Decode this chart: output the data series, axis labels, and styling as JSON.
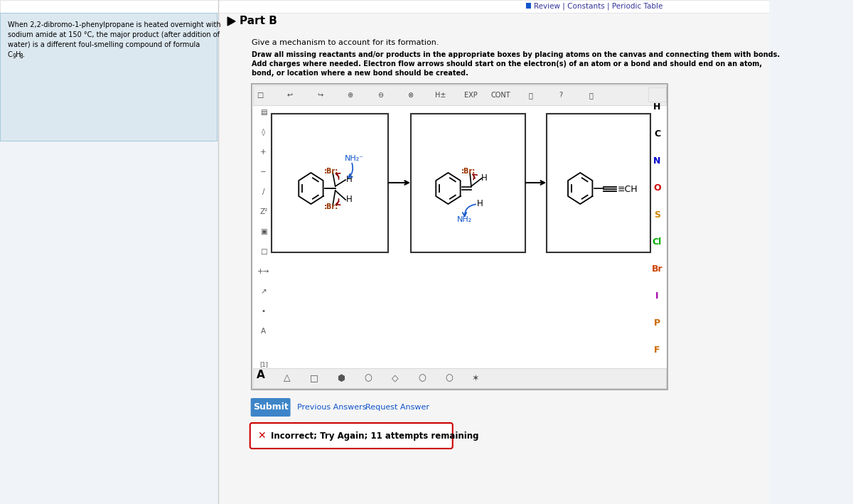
{
  "bg_color": "#f0f4f8",
  "top_bar_text": "Review | Constants | Periodic Table",
  "left_panel_bg": "#dce8f0",
  "part_label": "Part B",
  "instruction_line1": "Give a mechanism to account for its formation.",
  "instruction_line2_bold": "Draw all missing reactants and/or products in the appropriate boxes by placing atoms on the canvas and connecting them with bonds.",
  "instruction_line3_bold": "Add charges where needed. Electron flow arrows should start on the electron(s) of an atom or a bond and should end on an atom,",
  "instruction_line4_bold": "bond, or location where a new bond should be created.",
  "submit_btn_color": "#3d85c8",
  "submit_btn_text": "Submit",
  "prev_answers_text": "Previous Answers",
  "request_answer_text": "Request Answer",
  "incorrect_text": "Incorrect; Try Again; 11 attempts remaining",
  "right_panel_elements": [
    "H",
    "C",
    "N",
    "O",
    "S",
    "Cl",
    "Br",
    "I",
    "P",
    "F"
  ],
  "right_panel_colors": [
    "#000000",
    "#000000",
    "#0000cc",
    "#cc0000",
    "#cc8800",
    "#00aa00",
    "#cc4400",
    "#aa00aa",
    "#cc6600",
    "#cc6600"
  ]
}
